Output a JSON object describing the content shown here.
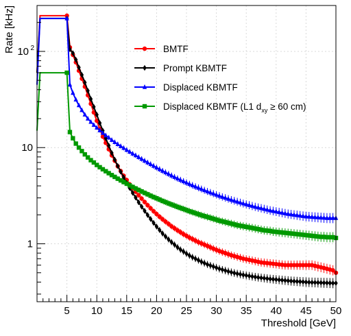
{
  "chart_data": {
    "type": "line",
    "xlabel": "Threshold [GeV]",
    "ylabel": "Rate [kHz]",
    "xlim": [
      0,
      50
    ],
    "ylim": [
      0.25,
      300
    ],
    "ylog": true,
    "x_ticks": [
      5,
      10,
      15,
      20,
      25,
      30,
      35,
      40,
      45,
      50
    ],
    "y_ticks": [
      {
        "value": 1,
        "label": "1"
      },
      {
        "value": 10,
        "label": "10"
      },
      {
        "value": 100,
        "label": "10",
        "sup": "2"
      }
    ],
    "legend_position": "top-right",
    "grid": true,
    "series": [
      {
        "name": "BMTF",
        "color": "#ff0000",
        "marker": "circle",
        "x": [
          0,
          0.5,
          1,
          1.5,
          2,
          2.5,
          3,
          3.5,
          4,
          4.5,
          5,
          5.5,
          6,
          6.5,
          7,
          7.5,
          8,
          8.5,
          9,
          9.5,
          10,
          10.5,
          11,
          11.5,
          12,
          12.5,
          13,
          13.5,
          14,
          14.5,
          15,
          15.5,
          16,
          16.5,
          17,
          17.5,
          18,
          18.5,
          19,
          19.5,
          20,
          20.5,
          21,
          21.5,
          22,
          22.5,
          23,
          23.5,
          24,
          24.5,
          25,
          25.5,
          26,
          26.5,
          27,
          27.5,
          28,
          28.5,
          29,
          29.5,
          30,
          30.5,
          31,
          31.5,
          32,
          32.5,
          33,
          33.5,
          34,
          34.5,
          35,
          35.5,
          36,
          36.5,
          37,
          37.5,
          38,
          38.5,
          39,
          39.5,
          40,
          40.5,
          41,
          41.5,
          42,
          42.5,
          43,
          43.5,
          44,
          44.5,
          45,
          45.5,
          46,
          46.5,
          47,
          47.5,
          48,
          48.5,
          49,
          49.5,
          50
        ],
        "values": [
          60,
          235,
          235,
          235,
          235,
          235,
          235,
          235,
          235,
          235,
          235,
          110,
          92,
          77,
          63,
          52,
          43,
          35,
          28.5,
          23.2,
          19,
          15.7,
          13,
          11.2,
          9.6,
          8.3,
          7.3,
          6.4,
          5.7,
          5.1,
          4.6,
          4.15,
          3.8,
          3.48,
          3.2,
          2.95,
          2.72,
          2.52,
          2.34,
          2.18,
          2.04,
          1.91,
          1.8,
          1.7,
          1.61,
          1.52,
          1.45,
          1.38,
          1.32,
          1.26,
          1.21,
          1.16,
          1.12,
          1.08,
          1.04,
          1.01,
          0.98,
          0.95,
          0.92,
          0.89,
          0.865,
          0.84,
          0.82,
          0.8,
          0.78,
          0.76,
          0.745,
          0.73,
          0.715,
          0.7,
          0.69,
          0.68,
          0.67,
          0.66,
          0.65,
          0.64,
          0.635,
          0.63,
          0.625,
          0.62,
          0.615,
          0.61,
          0.605,
          0.6,
          0.6,
          0.6,
          0.6,
          0.6,
          0.6,
          0.6,
          0.6,
          0.6,
          0.6,
          0.59,
          0.58,
          0.57,
          0.56,
          0.55,
          0.54,
          0.53,
          0.5
        ]
      },
      {
        "name": "Prompt KBMTF",
        "color": "#000000",
        "marker": "diamond",
        "x": [
          0,
          0.5,
          1,
          1.5,
          2,
          2.5,
          3,
          3.5,
          4,
          4.5,
          5,
          5.5,
          6,
          6.5,
          7,
          7.5,
          8,
          8.5,
          9,
          9.5,
          10,
          10.5,
          11,
          11.5,
          12,
          12.5,
          13,
          13.5,
          14,
          14.5,
          15,
          15.5,
          16,
          16.5,
          17,
          17.5,
          18,
          18.5,
          19,
          19.5,
          20,
          20.5,
          21,
          21.5,
          22,
          22.5,
          23,
          23.5,
          24,
          24.5,
          25,
          25.5,
          26,
          26.5,
          27,
          27.5,
          28,
          28.5,
          29,
          29.5,
          30,
          30.5,
          31,
          31.5,
          32,
          32.5,
          33,
          33.5,
          34,
          34.5,
          35,
          35.5,
          36,
          36.5,
          37,
          37.5,
          38,
          38.5,
          39,
          39.5,
          40,
          40.5,
          41,
          41.5,
          42,
          42.5,
          43,
          43.5,
          44,
          44.5,
          45,
          45.5,
          46,
          46.5,
          47,
          47.5,
          48,
          48.5,
          49,
          49.5,
          50
        ],
        "values": [
          60,
          220,
          220,
          220,
          220,
          220,
          220,
          220,
          220,
          220,
          220,
          105,
          96,
          82,
          68,
          57,
          47.5,
          39,
          32,
          26.5,
          22,
          18,
          15,
          12.5,
          10.5,
          8.8,
          7.5,
          6.45,
          5.6,
          4.9,
          4.3,
          3.8,
          3.38,
          3.02,
          2.7,
          2.43,
          2.2,
          1.99,
          1.81,
          1.65,
          1.51,
          1.39,
          1.28,
          1.19,
          1.11,
          1.04,
          0.98,
          0.92,
          0.87,
          0.83,
          0.79,
          0.755,
          0.725,
          0.7,
          0.675,
          0.65,
          0.63,
          0.61,
          0.595,
          0.58,
          0.565,
          0.55,
          0.538,
          0.527,
          0.516,
          0.506,
          0.497,
          0.489,
          0.482,
          0.475,
          0.469,
          0.463,
          0.457,
          0.452,
          0.447,
          0.443,
          0.439,
          0.435,
          0.431,
          0.428,
          0.425,
          0.422,
          0.419,
          0.416,
          0.413,
          0.41,
          0.408,
          0.406,
          0.404,
          0.402,
          0.4,
          0.398,
          0.397,
          0.396,
          0.395,
          0.394,
          0.393,
          0.392,
          0.391,
          0.39,
          0.39
        ]
      },
      {
        "name": "Displaced KBMTF",
        "color": "#0000ff",
        "marker": "triangle",
        "x": [
          0,
          0.5,
          1,
          1.5,
          2,
          2.5,
          3,
          3.5,
          4,
          4.5,
          5,
          5.5,
          6,
          6.5,
          7,
          7.5,
          8,
          8.5,
          9,
          9.5,
          10,
          10.5,
          11,
          11.5,
          12,
          12.5,
          13,
          13.5,
          14,
          14.5,
          15,
          15.5,
          16,
          16.5,
          17,
          17.5,
          18,
          18.5,
          19,
          19.5,
          20,
          20.5,
          21,
          21.5,
          22,
          22.5,
          23,
          23.5,
          24,
          24.5,
          25,
          25.5,
          26,
          26.5,
          27,
          27.5,
          28,
          28.5,
          29,
          29.5,
          30,
          30.5,
          31,
          31.5,
          32,
          32.5,
          33,
          33.5,
          34,
          34.5,
          35,
          35.5,
          36,
          36.5,
          37,
          37.5,
          38,
          38.5,
          39,
          39.5,
          40,
          40.5,
          41,
          41.5,
          42,
          42.5,
          43,
          43.5,
          44,
          44.5,
          45,
          45.5,
          46,
          46.5,
          47,
          47.5,
          48,
          48.5,
          49,
          49.5,
          50
        ],
        "values": [
          45,
          220,
          220,
          220,
          220,
          220,
          220,
          220,
          220,
          220,
          220,
          45,
          37,
          31.5,
          27.5,
          24.5,
          22,
          20,
          18.5,
          17.2,
          16.1,
          15.1,
          14.2,
          13.4,
          12.7,
          12,
          11.4,
          10.85,
          10.35,
          9.9,
          9.45,
          9.05,
          8.65,
          8.3,
          7.95,
          7.62,
          7.3,
          7,
          6.72,
          6.45,
          6.2,
          5.96,
          5.73,
          5.52,
          5.32,
          5.12,
          4.94,
          4.77,
          4.61,
          4.46,
          4.32,
          4.18,
          4.05,
          3.93,
          3.82,
          3.71,
          3.6,
          3.5,
          3.41,
          3.32,
          3.23,
          3.15,
          3.07,
          3,
          2.93,
          2.86,
          2.8,
          2.74,
          2.68,
          2.62,
          2.57,
          2.52,
          2.47,
          2.42,
          2.38,
          2.34,
          2.3,
          2.26,
          2.22,
          2.19,
          2.16,
          2.13,
          2.1,
          2.07,
          2.04,
          2.02,
          2,
          1.98,
          1.96,
          1.94,
          1.92,
          1.91,
          1.9,
          1.89,
          1.88,
          1.87,
          1.86,
          1.85,
          1.85,
          1.85,
          1.85
        ]
      },
      {
        "name": "Displaced KBMTF (L1 d",
        "name_sub": "xy",
        "name_suffix": " ≥ 60 cm)",
        "color": "#009900",
        "marker": "square",
        "x": [
          0,
          0.5,
          1,
          1.5,
          2,
          2.5,
          3,
          3.5,
          4,
          4.5,
          5,
          5.5,
          6,
          6.5,
          7,
          7.5,
          8,
          8.5,
          9,
          9.5,
          10,
          10.5,
          11,
          11.5,
          12,
          12.5,
          13,
          13.5,
          14,
          14.5,
          15,
          15.5,
          16,
          16.5,
          17,
          17.5,
          18,
          18.5,
          19,
          19.5,
          20,
          20.5,
          21,
          21.5,
          22,
          22.5,
          23,
          23.5,
          24,
          24.5,
          25,
          25.5,
          26,
          26.5,
          27,
          27.5,
          28,
          28.5,
          29,
          29.5,
          30,
          30.5,
          31,
          31.5,
          32,
          32.5,
          33,
          33.5,
          34,
          34.5,
          35,
          35.5,
          36,
          36.5,
          37,
          37.5,
          38,
          38.5,
          39,
          39.5,
          40,
          40.5,
          41,
          41.5,
          42,
          42.5,
          43,
          43.5,
          44,
          44.5,
          45,
          45.5,
          46,
          46.5,
          47,
          47.5,
          48,
          48.5,
          49,
          49.5,
          50
        ],
        "values": [
          15,
          60,
          60,
          60,
          60,
          60,
          60,
          60,
          60,
          60,
          60,
          14.5,
          12.5,
          11,
          10,
          9.2,
          8.5,
          7.9,
          7.4,
          7,
          6.6,
          6.25,
          5.95,
          5.68,
          5.42,
          5.18,
          4.96,
          4.75,
          4.56,
          4.38,
          4.21,
          4.05,
          3.9,
          3.76,
          3.63,
          3.5,
          3.38,
          3.27,
          3.16,
          3.06,
          2.97,
          2.88,
          2.79,
          2.71,
          2.63,
          2.56,
          2.49,
          2.42,
          2.36,
          2.3,
          2.24,
          2.18,
          2.13,
          2.08,
          2.03,
          1.98,
          1.94,
          1.9,
          1.86,
          1.82,
          1.78,
          1.74,
          1.71,
          1.68,
          1.65,
          1.62,
          1.59,
          1.56,
          1.54,
          1.52,
          1.5,
          1.48,
          1.46,
          1.44,
          1.42,
          1.4,
          1.38,
          1.37,
          1.36,
          1.34,
          1.33,
          1.32,
          1.31,
          1.3,
          1.29,
          1.28,
          1.27,
          1.26,
          1.25,
          1.24,
          1.23,
          1.22,
          1.21,
          1.2,
          1.19,
          1.18,
          1.18,
          1.17,
          1.17,
          1.17,
          1.15
        ]
      }
    ]
  }
}
